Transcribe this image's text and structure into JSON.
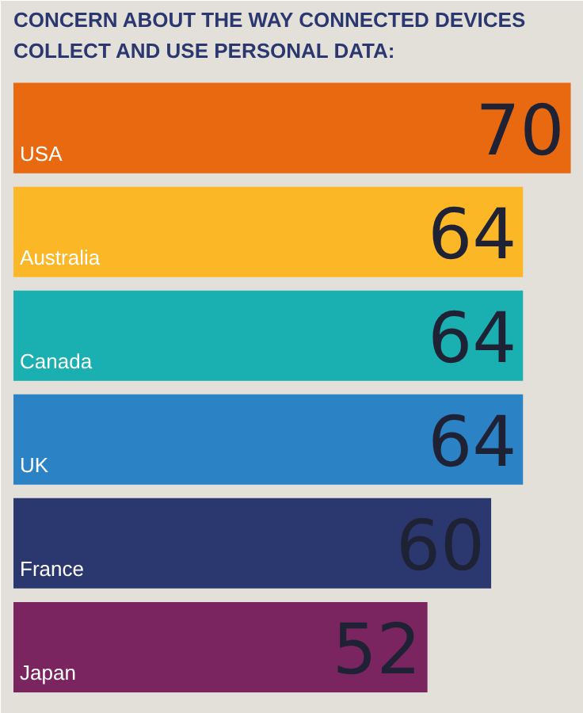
{
  "chart_data": {
    "type": "bar",
    "orientation": "horizontal",
    "title": "CONCERN ABOUT THE WAY CONNECTED DEVICES\nCOLLECT AND USE PERSONAL DATA:",
    "categories": [
      "USA",
      "Australia",
      "Canada",
      "UK",
      "France",
      "Japan"
    ],
    "values": [
      70,
      64,
      64,
      64,
      60,
      52
    ],
    "colors": [
      "#e8690f",
      "#fbb726",
      "#1aafb0",
      "#2b83c6",
      "#2b3870",
      "#7b2560"
    ],
    "data_labels": true
  }
}
